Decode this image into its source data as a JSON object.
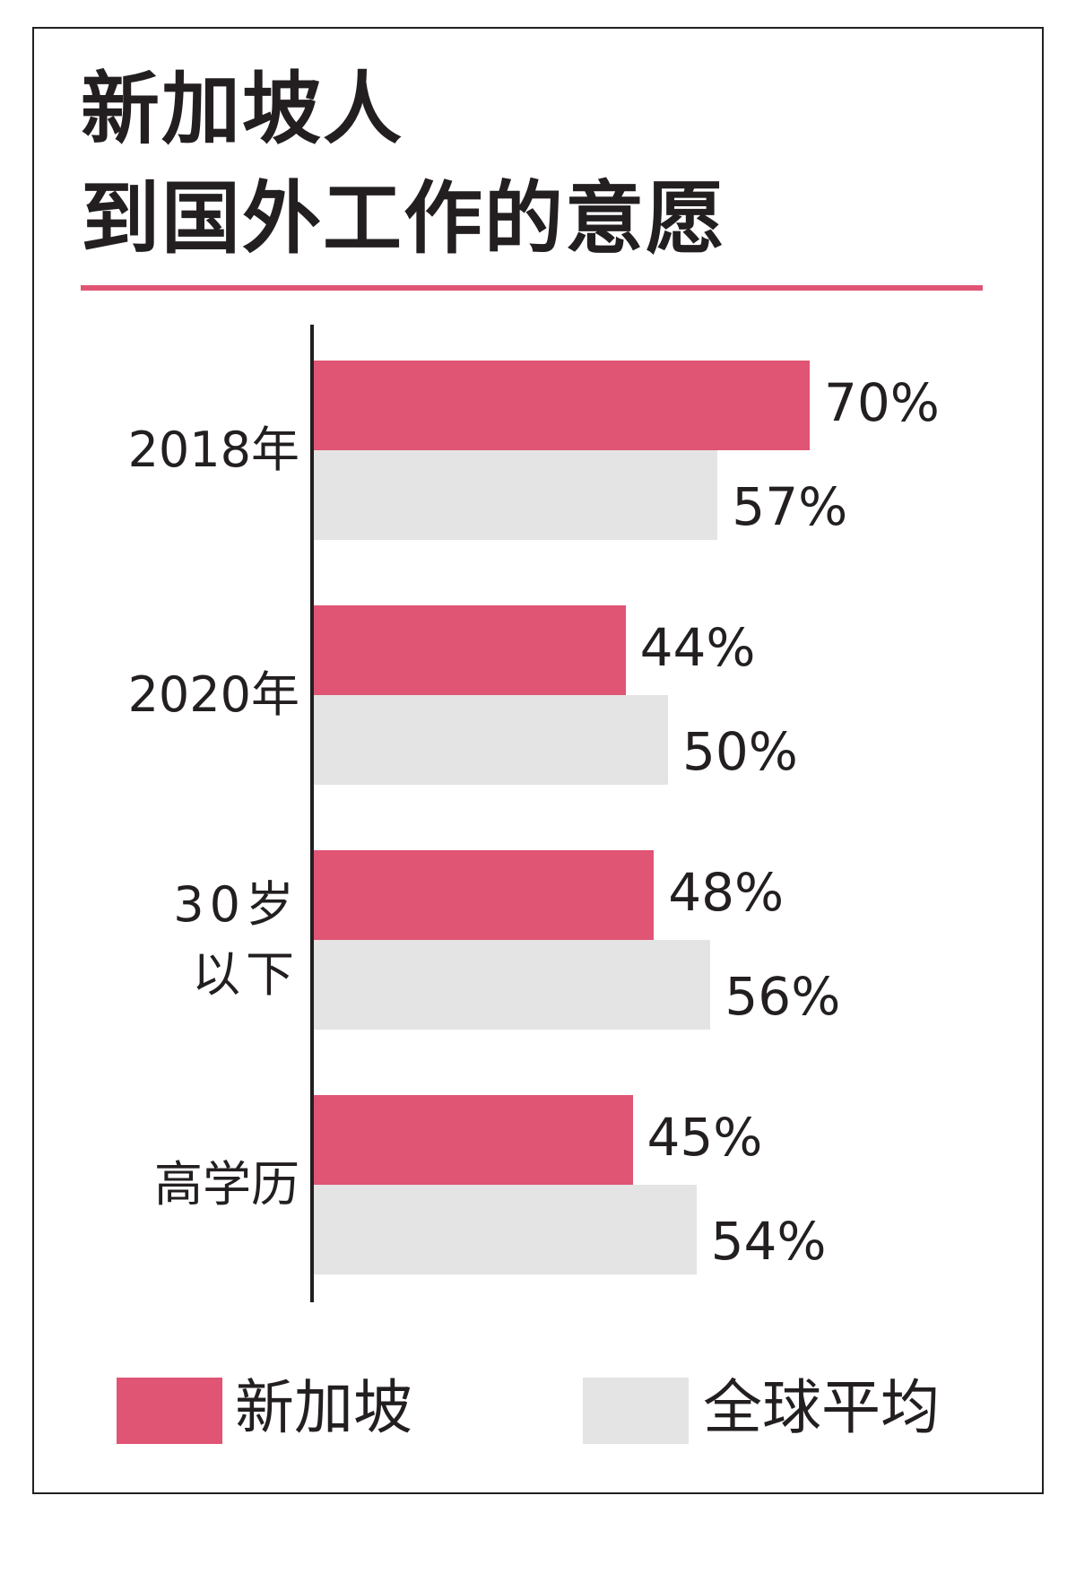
{
  "colors": {
    "primary": "#e05474",
    "secondary": "#e4e4e4",
    "text": "#231f20"
  },
  "chart_data": {
    "type": "bar",
    "orientation": "horizontal",
    "title": "新加坡人\n到国外工作的意愿",
    "title_lines": [
      "新加坡人",
      "到国外工作的意愿"
    ],
    "categories": [
      "2018年",
      "2020年",
      "30岁\n以下",
      "高学历"
    ],
    "series": [
      {
        "name": "新加坡",
        "values": [
          70,
          44,
          48,
          45
        ],
        "labels": [
          "70%",
          "44%",
          "48%",
          "45%"
        ]
      },
      {
        "name": "全球平均",
        "values": [
          57,
          50,
          56,
          54
        ],
        "labels": [
          "57%",
          "50%",
          "56%",
          "54%"
        ]
      }
    ],
    "unit": "%",
    "xlim": [
      0,
      100
    ],
    "grid": false,
    "legend_position": "bottom"
  }
}
